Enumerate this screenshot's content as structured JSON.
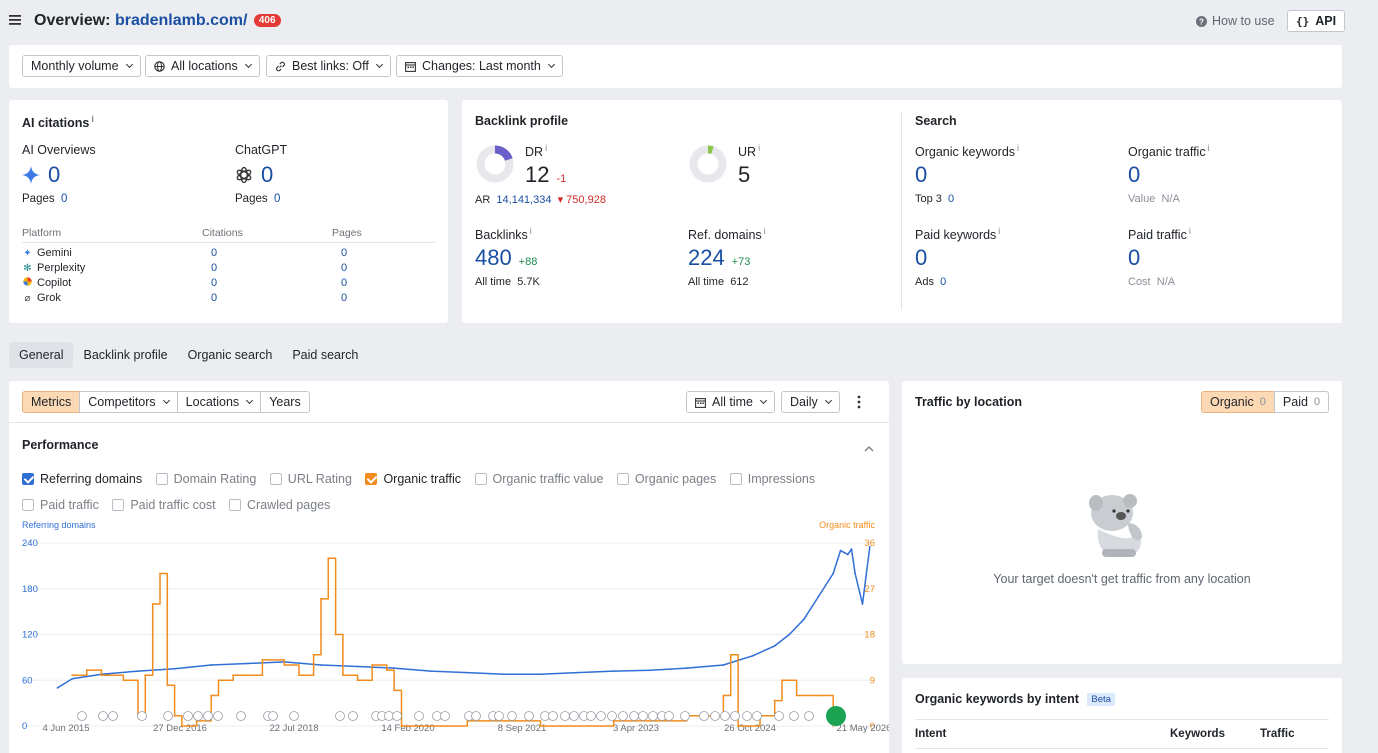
{
  "header": {
    "title_prefix": "Overview:",
    "domain": "bradenlamb.com/",
    "badge": "406",
    "how_to_use": "How to use",
    "api": "API"
  },
  "filters": {
    "volume": "Monthly volume",
    "locations": "All locations",
    "best_links": "Best links: Off",
    "changes": "Changes: Last month"
  },
  "ai_citations": {
    "title": "AI citations",
    "info": "i",
    "overviews_label": "AI Overviews",
    "overviews_value": "0",
    "overviews_pages_label": "Pages",
    "overviews_pages_value": "0",
    "chatgpt_label": "ChatGPT",
    "chatgpt_value": "0",
    "chatgpt_pages_label": "Pages",
    "chatgpt_pages_value": "0",
    "table_headers": [
      "Platform",
      "Citations",
      "Pages"
    ],
    "rows": [
      {
        "platform": "Gemini",
        "icon": "gemini-icon",
        "citations": "0",
        "pages": "0"
      },
      {
        "platform": "Perplexity",
        "icon": "perplexity-icon",
        "citations": "0",
        "pages": "0"
      },
      {
        "platform": "Copilot",
        "icon": "copilot-icon",
        "citations": "0",
        "pages": "0"
      },
      {
        "platform": "Grok",
        "icon": "grok-icon",
        "citations": "0",
        "pages": "0"
      }
    ]
  },
  "backlink_profile": {
    "title": "Backlink profile",
    "dr_label": "DR",
    "dr_value": "12",
    "dr_change": "-1",
    "ar_label": "AR",
    "ar_value": "14,141,334",
    "ar_change": "750,928",
    "ur_label": "UR",
    "ur_value": "5",
    "backlinks_label": "Backlinks",
    "backlinks_value": "480",
    "backlinks_change": "+88",
    "backlinks_alltime_label": "All time",
    "backlinks_alltime_value": "5.7K",
    "refdomains_label": "Ref. domains",
    "refdomains_value": "224",
    "refdomains_change": "+73",
    "refdomains_alltime_label": "All time",
    "refdomains_alltime_value": "612"
  },
  "search": {
    "title": "Search",
    "organic_keywords_label": "Organic keywords",
    "organic_keywords_value": "0",
    "top3_label": "Top 3",
    "top3_value": "0",
    "organic_traffic_label": "Organic traffic",
    "organic_traffic_value": "0",
    "value_label": "Value",
    "value_value": "N/A",
    "paid_keywords_label": "Paid keywords",
    "paid_keywords_value": "0",
    "ads_label": "Ads",
    "ads_value": "0",
    "paid_traffic_label": "Paid traffic",
    "paid_traffic_value": "0",
    "cost_label": "Cost",
    "cost_value": "N/A"
  },
  "tabs": [
    "General",
    "Backlink profile",
    "Organic search",
    "Paid search"
  ],
  "chart_panel": {
    "segments": [
      "Metrics",
      "Competitors",
      "Locations",
      "Years"
    ],
    "range": "All time",
    "interval": "Daily",
    "performance_title": "Performance",
    "checkboxes": [
      {
        "label": "Referring domains",
        "checked": true,
        "color": "#2f6fd6"
      },
      {
        "label": "Domain Rating",
        "checked": false
      },
      {
        "label": "URL Rating",
        "checked": false
      },
      {
        "label": "Organic traffic",
        "checked": true,
        "color": "#f28c1c"
      },
      {
        "label": "Organic traffic value",
        "checked": false
      },
      {
        "label": "Organic pages",
        "checked": false
      },
      {
        "label": "Impressions",
        "checked": false
      },
      {
        "label": "Paid traffic",
        "checked": false
      },
      {
        "label": "Paid traffic cost",
        "checked": false
      },
      {
        "label": "Crawled pages",
        "checked": false
      }
    ]
  },
  "chart_data": {
    "type": "line",
    "left_axis_label": "Referring domains",
    "right_axis_label": "Organic traffic",
    "y_left_ticks": [
      "0",
      "60",
      "120",
      "180",
      "240"
    ],
    "y_right_ticks": [
      "0",
      "9",
      "18",
      "27",
      "36"
    ],
    "ylim_left": [
      0,
      240
    ],
    "ylim_right": [
      0,
      36
    ],
    "x_ticks": [
      "4 Jun 2015",
      "27 Dec 2016",
      "22 Jul 2018",
      "14 Feb 2020",
      "8 Sep 2021",
      "3 Apr 2023",
      "26 Oct 2024",
      "21 May 2026"
    ],
    "grid": true,
    "series": [
      {
        "name": "Referring domains",
        "color": "#2f6fd6",
        "axis": "left",
        "x": [
          2015.4,
          2015.6,
          2016.0,
          2016.5,
          2017.0,
          2017.5,
          2018.0,
          2018.5,
          2019.0,
          2019.5,
          2020.0,
          2020.5,
          2021.0,
          2021.5,
          2022.0,
          2022.5,
          2023.0,
          2023.5,
          2024.0,
          2024.5,
          2024.9,
          2025.2,
          2025.4,
          2025.6,
          2025.8,
          2026.0,
          2026.1,
          2026.2,
          2026.25,
          2026.3,
          2026.4,
          2026.5
        ],
        "values": [
          50,
          62,
          68,
          72,
          75,
          80,
          82,
          84,
          80,
          78,
          76,
          72,
          70,
          68,
          68,
          70,
          72,
          73,
          76,
          80,
          92,
          105,
          120,
          140,
          170,
          200,
          230,
          225,
          232,
          200,
          160,
          235
        ]
      },
      {
        "name": "Organic traffic",
        "color": "#f28c1c",
        "axis": "right",
        "x": [
          2015.6,
          2015.8,
          2016.0,
          2016.3,
          2016.5,
          2016.6,
          2016.7,
          2016.8,
          2016.9,
          2017.0,
          2017.1,
          2017.3,
          2017.5,
          2017.6,
          2017.8,
          2018.0,
          2018.2,
          2018.5,
          2018.7,
          2018.9,
          2019.0,
          2019.1,
          2019.2,
          2019.3,
          2019.5,
          2019.7,
          2019.9,
          2020.0,
          2020.1,
          2021.0,
          2022.0,
          2023.0,
          2024.0,
          2024.5,
          2024.6,
          2024.7,
          2025.0,
          2025.2,
          2025.3,
          2025.5,
          2025.8,
          2026.0
        ],
        "values": [
          10,
          11,
          10,
          9,
          2,
          10,
          24,
          30,
          8,
          2,
          0,
          1,
          6,
          9,
          10,
          10,
          13,
          12,
          10,
          14,
          25,
          33,
          18,
          10,
          9,
          12,
          11,
          7,
          0,
          1,
          0,
          1,
          2,
          6,
          14,
          0,
          2,
          5,
          9,
          6,
          6,
          0
        ]
      }
    ]
  },
  "traffic_location": {
    "title": "Traffic by location",
    "organic_label": "Organic",
    "organic_count": "0",
    "paid_label": "Paid",
    "paid_count": "0",
    "empty_text": "Your target doesn't get traffic from any location"
  },
  "keywords_intent": {
    "title": "Organic keywords by intent",
    "beta": "Beta",
    "headers": [
      "Intent",
      "Keywords",
      "Traffic"
    ]
  }
}
